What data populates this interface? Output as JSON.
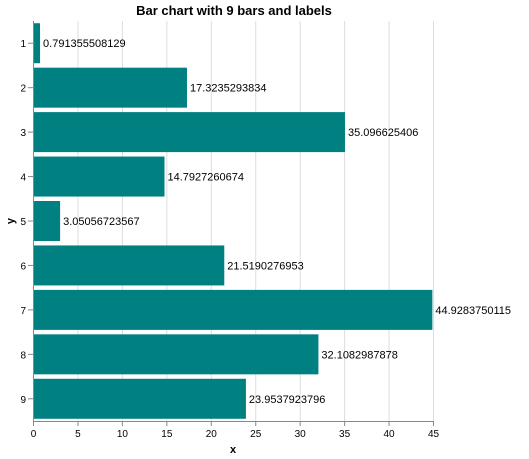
{
  "chart_data": {
    "type": "bar",
    "orientation": "horizontal",
    "title": "Bar chart with 9 bars and labels",
    "xlabel": "x",
    "ylabel": "y",
    "categories": [
      "1",
      "2",
      "3",
      "4",
      "5",
      "6",
      "7",
      "8",
      "9"
    ],
    "values": [
      0.791355508129,
      17.3235293834,
      35.096625406,
      14.7927260674,
      3.05056723567,
      21.5190276953,
      44.9283750115,
      32.1082987878,
      23.9537923796
    ],
    "data_labels": [
      "0.791355508129",
      "17.3235293834",
      "35.096625406",
      "14.7927260674",
      "3.05056723567",
      "21.5190276953",
      "44.9283750115",
      "32.1082987878",
      "23.9537923796"
    ],
    "xlim": [
      0,
      45
    ],
    "x_ticks": [
      0,
      5,
      10,
      15,
      20,
      25,
      30,
      35,
      40,
      45
    ],
    "x_grid": true,
    "y_grid": false,
    "legend": "none",
    "bar_color": "#008080"
  }
}
